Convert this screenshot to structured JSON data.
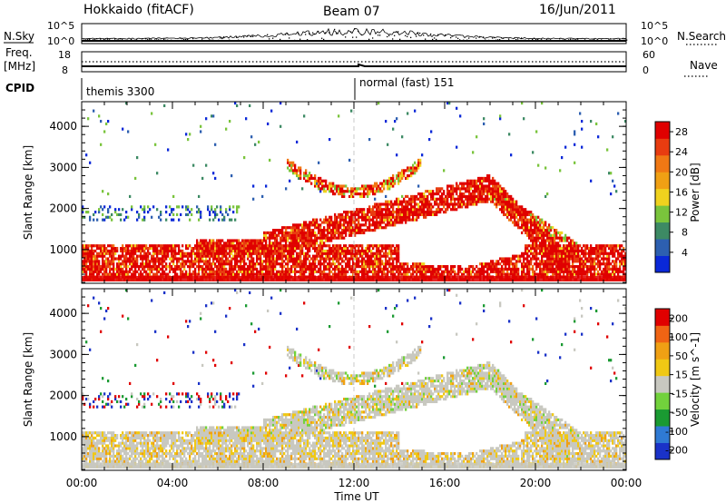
{
  "header": {
    "station": "Hokkaido (fitACF)",
    "beam": "Beam 07",
    "date": "16/Jun/2011"
  },
  "strip_panels": {
    "noise": {
      "left_label": "N.Sky",
      "right_label": "N.Search",
      "left_ticks": [
        "10^5",
        "10^0"
      ],
      "right_ticks": [
        "10^5",
        "10^0"
      ]
    },
    "freq": {
      "left_label_line1": "Freq.",
      "left_label_line2": "[MHz]",
      "right_label": "Nave",
      "left_ticks": [
        "18",
        "8"
      ],
      "right_ticks": [
        "60",
        "0"
      ]
    },
    "cpid": {
      "label": "CPID",
      "modes": [
        {
          "name": "themis 3300",
          "start_hour": 0
        },
        {
          "name": "normal (fast) 151",
          "start_hour": 12
        }
      ]
    }
  },
  "chart_data": [
    {
      "type": "heatmap",
      "title": "",
      "ylabel": "Slant Range [km]",
      "xlabel": "",
      "xlim": [
        0,
        24
      ],
      "ylim": [
        180,
        4600
      ],
      "x_ticks": [
        "00:00",
        "04:00",
        "08:00",
        "12:00",
        "16:00",
        "20:00",
        "00:00"
      ],
      "y_ticks": [
        1000,
        2000,
        3000,
        4000
      ],
      "colorbar": {
        "label": "Power [dB]",
        "ticks": [
          4,
          8,
          12,
          16,
          20,
          24,
          28
        ],
        "range": [
          0,
          30
        ],
        "colors": [
          "#0a28d8",
          "#2d5fb0",
          "#3d8a64",
          "#7ac43c",
          "#f0d21e",
          "#f0a014",
          "#f07814",
          "#e83c10",
          "#e00000"
        ]
      },
      "features": [
        {
          "name": "near-range band",
          "x": [
            0,
            24
          ],
          "y": [
            300,
            1200
          ],
          "dominant": "red"
        },
        {
          "name": "main rising echo",
          "x": [
            8,
            19
          ],
          "y": [
            1100,
            2600
          ],
          "dominant": "red"
        },
        {
          "name": "arc",
          "x": [
            9,
            15
          ],
          "y": [
            2500,
            3300
          ],
          "dominant": "red"
        },
        {
          "name": "late arc",
          "x": [
            18,
            22
          ],
          "y": [
            900,
            2500
          ],
          "dominant": "red"
        }
      ]
    },
    {
      "type": "heatmap",
      "title": "",
      "ylabel": "Slant Range [km]",
      "xlabel": "Time UT",
      "xlim": [
        0,
        24
      ],
      "ylim": [
        180,
        4600
      ],
      "x_ticks": [
        "00:00",
        "04:00",
        "08:00",
        "12:00",
        "16:00",
        "20:00",
        "00:00"
      ],
      "y_ticks": [
        1000,
        2000,
        3000,
        4000
      ],
      "colorbar": {
        "label": "Velocity [m s^-1]",
        "ticks": [
          200,
          100,
          50,
          15,
          -15,
          -50,
          -100,
          -200
        ],
        "range": [
          -250,
          250
        ],
        "colors": [
          "#1a32c8",
          "#2f7ad4",
          "#1a9a32",
          "#72d23c",
          "#c8c8c0",
          "#f0c814",
          "#f0a014",
          "#f06414",
          "#e00000"
        ]
      },
      "features": [
        {
          "name": "ground scatter band",
          "x": [
            0,
            24
          ],
          "y": [
            300,
            1200
          ],
          "dominant": "grey"
        },
        {
          "name": "main rising echo",
          "x": [
            8,
            19
          ],
          "y": [
            1100,
            2600
          ],
          "dominant": "grey"
        },
        {
          "name": "arc",
          "x": [
            9,
            15
          ],
          "y": [
            2500,
            3300
          ],
          "dominant": "grey"
        }
      ]
    }
  ],
  "colors": {
    "red": "#e00000",
    "orange": "#f07814",
    "grey": "#c8c8c0"
  }
}
